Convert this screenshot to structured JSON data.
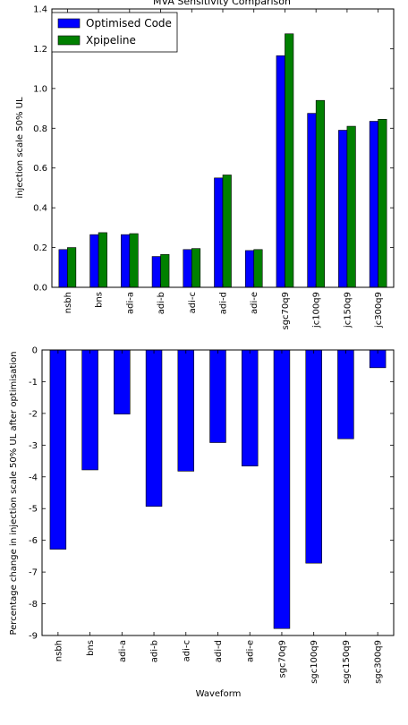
{
  "chart_data": [
    {
      "type": "bar",
      "title": "MVA Sensitivity Comparison",
      "xlabel": "",
      "ylabel": "injection scale 50% UL",
      "ylim": [
        0,
        1.4
      ],
      "yticks": [
        "0.0",
        "0.2",
        "0.4",
        "0.6",
        "0.8",
        "1.0",
        "1.2",
        "1.4"
      ],
      "categories": [
        "nsbh",
        "bns",
        "adi-a",
        "adi-b",
        "adi-c",
        "adi-d",
        "adi-e",
        "sgc70q9",
        "sgc100q9",
        "sgc150q9",
        "sgc300q9"
      ],
      "tick_labels": [
        "nsbh",
        "bns",
        "adi-a",
        "adi-b",
        "adi-c",
        "adi-d",
        "adi-e",
        "sgc70q9",
        "jc100q9",
        "jc150q9",
        "jc300q9"
      ],
      "series": [
        {
          "name": "Optimised Code",
          "color": "#0000ff",
          "values": [
            0.19,
            0.265,
            0.265,
            0.155,
            0.19,
            0.55,
            0.185,
            1.165,
            0.875,
            0.79,
            0.835
          ]
        },
        {
          "name": "Xpipeline",
          "color": "#008000",
          "values": [
            0.2,
            0.275,
            0.27,
            0.165,
            0.195,
            0.565,
            0.19,
            1.275,
            0.94,
            0.81,
            0.845
          ]
        }
      ],
      "legend": "top-left",
      "grid": false
    },
    {
      "type": "bar",
      "title": "",
      "xlabel": "Waveform",
      "ylabel": "Percentage change in injection scale 50% UL after optimisation",
      "ylim": [
        -9,
        0
      ],
      "yticks": [
        "-9",
        "-8",
        "-7",
        "-6",
        "-5",
        "-4",
        "-3",
        "-2",
        "-1",
        "0"
      ],
      "categories": [
        "nsbh",
        "bns",
        "adi-a",
        "adi-b",
        "adi-c",
        "adi-d",
        "adi-e",
        "sgc70q9",
        "sgc100q9",
        "sgc150q9",
        "sgc300q9"
      ],
      "series": [
        {
          "color": "#0000ff",
          "values": [
            -6.28,
            -3.78,
            -2.02,
            -4.93,
            -3.82,
            -2.92,
            -3.66,
            -8.78,
            -6.72,
            -2.8,
            -0.56
          ]
        }
      ],
      "grid": false
    }
  ]
}
